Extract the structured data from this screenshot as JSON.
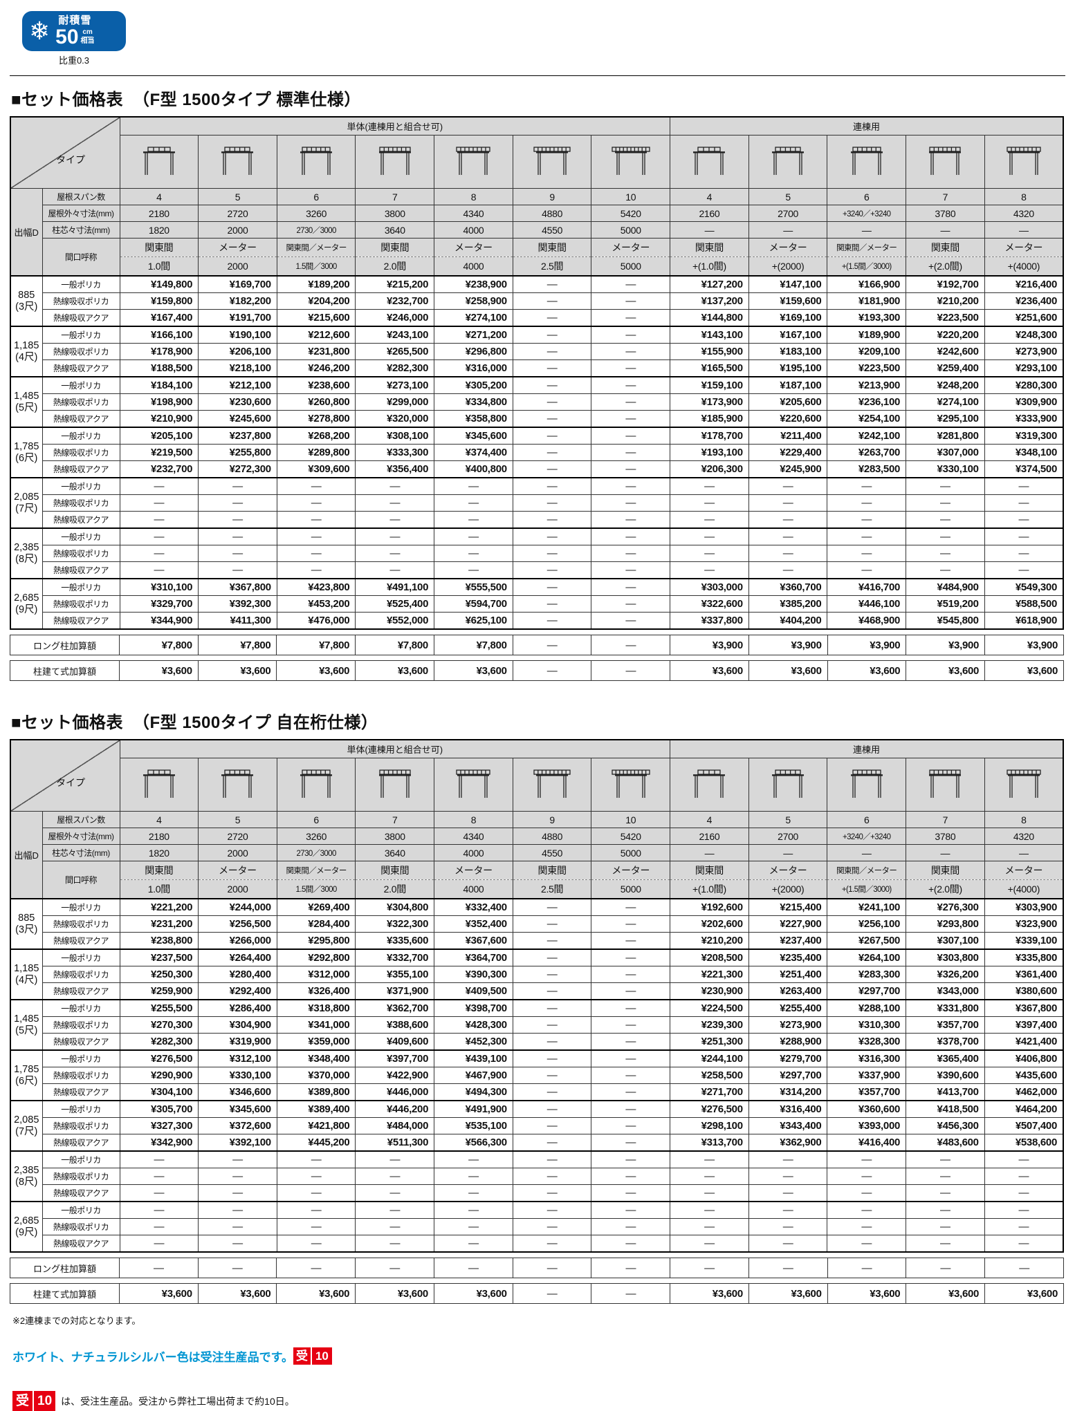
{
  "colors": {
    "badge_blue": "#0a5fa8",
    "header_gray": "#d8d8d8",
    "note_blue": "#0095d2",
    "badge_red": "#e60012"
  },
  "snow_badge": {
    "title": "耐積雪",
    "value": "50",
    "unit": "cm",
    "unit2": "相当",
    "note": "比重0.3",
    "snowflake_icon": "snowflake-icon"
  },
  "header": {
    "corner_label": "タイプ",
    "depth_label": "出幅D",
    "single_group_label": "単体(連棟用と組合せ可)",
    "renketsu_group_label": "連棟用",
    "single_count": 7,
    "row_labels": {
      "span": "屋根スパン数",
      "roof": "屋根外々寸法(mm)",
      "pillar": "柱芯々寸法(mm)",
      "opening": "間口呼称"
    },
    "product_labels": [
      "一般ポリカ",
      "熱線吸収ポリカ",
      "熱線吸収アクア"
    ],
    "spans": [
      "4",
      "5",
      "6",
      "7",
      "8",
      "9",
      "10",
      "4",
      "5",
      "6",
      "7",
      "8"
    ],
    "roof_dims": [
      "2180",
      "2720",
      "3260",
      "3800",
      "4340",
      "4880",
      "5420",
      "2160",
      "2700",
      "+3240／+3240",
      "3780",
      "4320"
    ],
    "pillar_dims": [
      "1820",
      "2000",
      "2730／3000",
      "3640",
      "4000",
      "4550",
      "5000",
      "—",
      "—",
      "—",
      "—",
      "—"
    ],
    "opening_names": [
      "関東間",
      "メーター",
      "関東間／メーター",
      "関東間",
      "メーター",
      "関東間",
      "メーター",
      "関東間",
      "メーター",
      "関東間／メーター",
      "関東間",
      "メーター"
    ],
    "opening_sizes": [
      "1.0間",
      "2000",
      "1.5間／3000",
      "2.0間",
      "4000",
      "2.5間",
      "5000",
      "+(1.0間)",
      "+(2000)",
      "+(1.5間／3000)",
      "+(2.0間)",
      "+(4000)"
    ]
  },
  "tables": [
    {
      "title": "■セット価格表",
      "subtitle": "（F型 1500タイプ 標準仕様）",
      "groups": [
        {
          "depth": "885",
          "shaku": "(3尺)",
          "rows": [
            [
              "¥149,800",
              "¥169,700",
              "¥189,200",
              "¥215,200",
              "¥238,900",
              "—",
              "—",
              "¥127,200",
              "¥147,100",
              "¥166,900",
              "¥192,700",
              "¥216,400"
            ],
            [
              "¥159,800",
              "¥182,200",
              "¥204,200",
              "¥232,700",
              "¥258,900",
              "—",
              "—",
              "¥137,200",
              "¥159,600",
              "¥181,900",
              "¥210,200",
              "¥236,400"
            ],
            [
              "¥167,400",
              "¥191,700",
              "¥215,600",
              "¥246,000",
              "¥274,100",
              "—",
              "—",
              "¥144,800",
              "¥169,100",
              "¥193,300",
              "¥223,500",
              "¥251,600"
            ]
          ]
        },
        {
          "depth": "1,185",
          "shaku": "(4尺)",
          "rows": [
            [
              "¥166,100",
              "¥190,100",
              "¥212,600",
              "¥243,100",
              "¥271,200",
              "—",
              "—",
              "¥143,100",
              "¥167,100",
              "¥189,900",
              "¥220,200",
              "¥248,300"
            ],
            [
              "¥178,900",
              "¥206,100",
              "¥231,800",
              "¥265,500",
              "¥296,800",
              "—",
              "—",
              "¥155,900",
              "¥183,100",
              "¥209,100",
              "¥242,600",
              "¥273,900"
            ],
            [
              "¥188,500",
              "¥218,100",
              "¥246,200",
              "¥282,300",
              "¥316,000",
              "—",
              "—",
              "¥165,500",
              "¥195,100",
              "¥223,500",
              "¥259,400",
              "¥293,100"
            ]
          ]
        },
        {
          "depth": "1,485",
          "shaku": "(5尺)",
          "rows": [
            [
              "¥184,100",
              "¥212,100",
              "¥238,600",
              "¥273,100",
              "¥305,200",
              "—",
              "—",
              "¥159,100",
              "¥187,100",
              "¥213,900",
              "¥248,200",
              "¥280,300"
            ],
            [
              "¥198,900",
              "¥230,600",
              "¥260,800",
              "¥299,000",
              "¥334,800",
              "—",
              "—",
              "¥173,900",
              "¥205,600",
              "¥236,100",
              "¥274,100",
              "¥309,900"
            ],
            [
              "¥210,900",
              "¥245,600",
              "¥278,800",
              "¥320,000",
              "¥358,800",
              "—",
              "—",
              "¥185,900",
              "¥220,600",
              "¥254,100",
              "¥295,100",
              "¥333,900"
            ]
          ]
        },
        {
          "depth": "1,785",
          "shaku": "(6尺)",
          "rows": [
            [
              "¥205,100",
              "¥237,800",
              "¥268,200",
              "¥308,100",
              "¥345,600",
              "—",
              "—",
              "¥178,700",
              "¥211,400",
              "¥242,100",
              "¥281,800",
              "¥319,300"
            ],
            [
              "¥219,500",
              "¥255,800",
              "¥289,800",
              "¥333,300",
              "¥374,400",
              "—",
              "—",
              "¥193,100",
              "¥229,400",
              "¥263,700",
              "¥307,000",
              "¥348,100"
            ],
            [
              "¥232,700",
              "¥272,300",
              "¥309,600",
              "¥356,400",
              "¥400,800",
              "—",
              "—",
              "¥206,300",
              "¥245,900",
              "¥283,500",
              "¥330,100",
              "¥374,500"
            ]
          ]
        },
        {
          "depth": "2,085",
          "shaku": "(7尺)",
          "rows": [
            [
              "—",
              "—",
              "—",
              "—",
              "—",
              "—",
              "—",
              "—",
              "—",
              "—",
              "—",
              "—"
            ],
            [
              "—",
              "—",
              "—",
              "—",
              "—",
              "—",
              "—",
              "—",
              "—",
              "—",
              "—",
              "—"
            ],
            [
              "—",
              "—",
              "—",
              "—",
              "—",
              "—",
              "—",
              "—",
              "—",
              "—",
              "—",
              "—"
            ]
          ]
        },
        {
          "depth": "2,385",
          "shaku": "(8尺)",
          "rows": [
            [
              "—",
              "—",
              "—",
              "—",
              "—",
              "—",
              "—",
              "—",
              "—",
              "—",
              "—",
              "—"
            ],
            [
              "—",
              "—",
              "—",
              "—",
              "—",
              "—",
              "—",
              "—",
              "—",
              "—",
              "—",
              "—"
            ],
            [
              "—",
              "—",
              "—",
              "—",
              "—",
              "—",
              "—",
              "—",
              "—",
              "—",
              "—",
              "—"
            ]
          ]
        },
        {
          "depth": "2,685",
          "shaku": "(9尺)",
          "rows": [
            [
              "¥310,100",
              "¥367,800",
              "¥423,800",
              "¥491,100",
              "¥555,500",
              "—",
              "—",
              "¥303,000",
              "¥360,700",
              "¥416,700",
              "¥484,900",
              "¥549,300"
            ],
            [
              "¥329,700",
              "¥392,300",
              "¥453,200",
              "¥525,400",
              "¥594,700",
              "—",
              "—",
              "¥322,600",
              "¥385,200",
              "¥446,100",
              "¥519,200",
              "¥588,500"
            ],
            [
              "¥344,900",
              "¥411,300",
              "¥476,000",
              "¥552,000",
              "¥625,100",
              "—",
              "—",
              "¥337,800",
              "¥404,200",
              "¥468,900",
              "¥545,800",
              "¥618,900"
            ]
          ]
        }
      ],
      "addons": [
        {
          "label": "ロング柱加算額",
          "values": [
            "¥7,800",
            "¥7,800",
            "¥7,800",
            "¥7,800",
            "¥7,800",
            "—",
            "—",
            "¥3,900",
            "¥3,900",
            "¥3,900",
            "¥3,900",
            "¥3,900"
          ]
        },
        {
          "label": "柱建て式加算額",
          "values": [
            "¥3,600",
            "¥3,600",
            "¥3,600",
            "¥3,600",
            "¥3,600",
            "—",
            "—",
            "¥3,600",
            "¥3,600",
            "¥3,600",
            "¥3,600",
            "¥3,600"
          ]
        }
      ]
    },
    {
      "title": "■セット価格表",
      "subtitle": "（F型 1500タイプ 自在桁仕様）",
      "groups": [
        {
          "depth": "885",
          "shaku": "(3尺)",
          "rows": [
            [
              "¥221,200",
              "¥244,000",
              "¥269,400",
              "¥304,800",
              "¥332,400",
              "—",
              "—",
              "¥192,600",
              "¥215,400",
              "¥241,100",
              "¥276,300",
              "¥303,900"
            ],
            [
              "¥231,200",
              "¥256,500",
              "¥284,400",
              "¥322,300",
              "¥352,400",
              "—",
              "—",
              "¥202,600",
              "¥227,900",
              "¥256,100",
              "¥293,800",
              "¥323,900"
            ],
            [
              "¥238,800",
              "¥266,000",
              "¥295,800",
              "¥335,600",
              "¥367,600",
              "—",
              "—",
              "¥210,200",
              "¥237,400",
              "¥267,500",
              "¥307,100",
              "¥339,100"
            ]
          ]
        },
        {
          "depth": "1,185",
          "shaku": "(4尺)",
          "rows": [
            [
              "¥237,500",
              "¥264,400",
              "¥292,800",
              "¥332,700",
              "¥364,700",
              "—",
              "—",
              "¥208,500",
              "¥235,400",
              "¥264,100",
              "¥303,800",
              "¥335,800"
            ],
            [
              "¥250,300",
              "¥280,400",
              "¥312,000",
              "¥355,100",
              "¥390,300",
              "—",
              "—",
              "¥221,300",
              "¥251,400",
              "¥283,300",
              "¥326,200",
              "¥361,400"
            ],
            [
              "¥259,900",
              "¥292,400",
              "¥326,400",
              "¥371,900",
              "¥409,500",
              "—",
              "—",
              "¥230,900",
              "¥263,400",
              "¥297,700",
              "¥343,000",
              "¥380,600"
            ]
          ]
        },
        {
          "depth": "1,485",
          "shaku": "(5尺)",
          "rows": [
            [
              "¥255,500",
              "¥286,400",
              "¥318,800",
              "¥362,700",
              "¥398,700",
              "—",
              "—",
              "¥224,500",
              "¥255,400",
              "¥288,100",
              "¥331,800",
              "¥367,800"
            ],
            [
              "¥270,300",
              "¥304,900",
              "¥341,000",
              "¥388,600",
              "¥428,300",
              "—",
              "—",
              "¥239,300",
              "¥273,900",
              "¥310,300",
              "¥357,700",
              "¥397,400"
            ],
            [
              "¥282,300",
              "¥319,900",
              "¥359,000",
              "¥409,600",
              "¥452,300",
              "—",
              "—",
              "¥251,300",
              "¥288,900",
              "¥328,300",
              "¥378,700",
              "¥421,400"
            ]
          ]
        },
        {
          "depth": "1,785",
          "shaku": "(6尺)",
          "rows": [
            [
              "¥276,500",
              "¥312,100",
              "¥348,400",
              "¥397,700",
              "¥439,100",
              "—",
              "—",
              "¥244,100",
              "¥279,700",
              "¥316,300",
              "¥365,400",
              "¥406,800"
            ],
            [
              "¥290,900",
              "¥330,100",
              "¥370,000",
              "¥422,900",
              "¥467,900",
              "—",
              "—",
              "¥258,500",
              "¥297,700",
              "¥337,900",
              "¥390,600",
              "¥435,600"
            ],
            [
              "¥304,100",
              "¥346,600",
              "¥389,800",
              "¥446,000",
              "¥494,300",
              "—",
              "—",
              "¥271,700",
              "¥314,200",
              "¥357,700",
              "¥413,700",
              "¥462,000"
            ]
          ]
        },
        {
          "depth": "2,085",
          "shaku": "(7尺)",
          "rows": [
            [
              "¥305,700",
              "¥345,600",
              "¥389,400",
              "¥446,200",
              "¥491,900",
              "—",
              "—",
              "¥276,500",
              "¥316,400",
              "¥360,600",
              "¥418,500",
              "¥464,200"
            ],
            [
              "¥327,300",
              "¥372,600",
              "¥421,800",
              "¥484,000",
              "¥535,100",
              "—",
              "—",
              "¥298,100",
              "¥343,400",
              "¥393,000",
              "¥456,300",
              "¥507,400"
            ],
            [
              "¥342,900",
              "¥392,100",
              "¥445,200",
              "¥511,300",
              "¥566,300",
              "—",
              "—",
              "¥313,700",
              "¥362,900",
              "¥416,400",
              "¥483,600",
              "¥538,600"
            ]
          ]
        },
        {
          "depth": "2,385",
          "shaku": "(8尺)",
          "rows": [
            [
              "—",
              "—",
              "—",
              "—",
              "—",
              "—",
              "—",
              "—",
              "—",
              "—",
              "—",
              "—"
            ],
            [
              "—",
              "—",
              "—",
              "—",
              "—",
              "—",
              "—",
              "—",
              "—",
              "—",
              "—",
              "—"
            ],
            [
              "—",
              "—",
              "—",
              "—",
              "—",
              "—",
              "—",
              "—",
              "—",
              "—",
              "—",
              "—"
            ]
          ]
        },
        {
          "depth": "2,685",
          "shaku": "(9尺)",
          "rows": [
            [
              "—",
              "—",
              "—",
              "—",
              "—",
              "—",
              "—",
              "—",
              "—",
              "—",
              "—",
              "—"
            ],
            [
              "—",
              "—",
              "—",
              "—",
              "—",
              "—",
              "—",
              "—",
              "—",
              "—",
              "—",
              "—"
            ],
            [
              "—",
              "—",
              "—",
              "—",
              "—",
              "—",
              "—",
              "—",
              "—",
              "—",
              "—",
              "—"
            ]
          ]
        }
      ],
      "addons": [
        {
          "label": "ロング柱加算額",
          "values": [
            "—",
            "—",
            "—",
            "—",
            "—",
            "—",
            "—",
            "—",
            "—",
            "—",
            "—",
            "—"
          ]
        },
        {
          "label": "柱建て式加算額",
          "values": [
            "¥3,600",
            "¥3,600",
            "¥3,600",
            "¥3,600",
            "¥3,600",
            "—",
            "—",
            "¥3,600",
            "¥3,600",
            "¥3,600",
            "¥3,600",
            "¥3,600"
          ]
        }
      ]
    }
  ],
  "notes": {
    "note_renketsu": "※2連棟までの対応となります。",
    "note_color": "ホワイト、ナチュラルシルバー色は受注生産品です。",
    "badge_ju": "受",
    "badge_10": "10",
    "note_made_to_order": "は、受注生産品。受注から弊社工場出荷まで約10日。"
  }
}
